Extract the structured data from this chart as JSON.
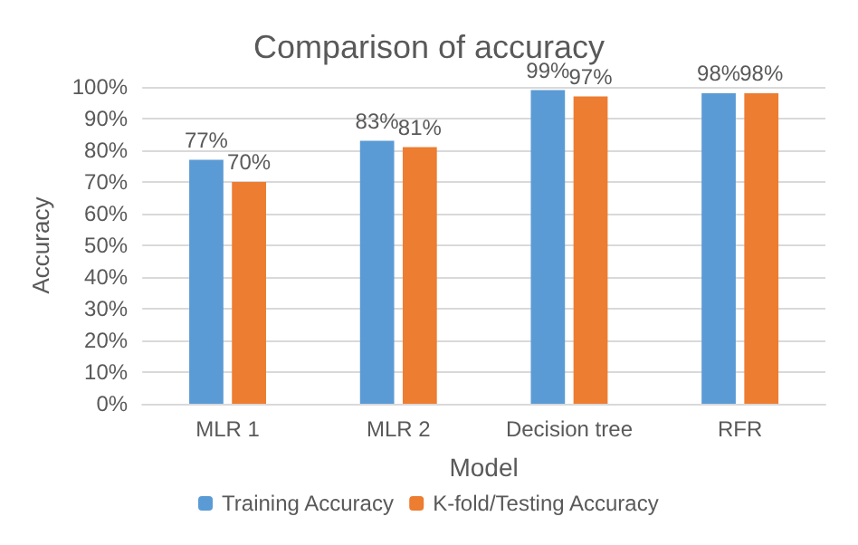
{
  "chart_data": {
    "type": "bar",
    "title": "Comparison of accuracy",
    "xlabel": "Model",
    "ylabel": "Accuracy",
    "categories": [
      "MLR 1",
      "MLR 2",
      "Decision tree",
      "RFR"
    ],
    "series": [
      {
        "name": "Training Accuracy",
        "color": "#5b9bd5",
        "values": [
          77,
          83,
          99,
          98
        ],
        "value_labels": [
          "77%",
          "83%",
          "99%",
          "98%"
        ]
      },
      {
        "name": "K-fold/Testing Accuracy",
        "color": "#ed7d31",
        "values": [
          70,
          81,
          97,
          98
        ],
        "value_labels": [
          "70%",
          "81%",
          "97%",
          "98%"
        ]
      }
    ],
    "ylim": [
      0,
      100
    ],
    "yticks": [
      {
        "value": 0,
        "label": "0%"
      },
      {
        "value": 10,
        "label": "10%"
      },
      {
        "value": 20,
        "label": "20%"
      },
      {
        "value": 30,
        "label": "30%"
      },
      {
        "value": 40,
        "label": "40%"
      },
      {
        "value": 50,
        "label": "50%"
      },
      {
        "value": 60,
        "label": "60%"
      },
      {
        "value": 70,
        "label": "70%"
      },
      {
        "value": 80,
        "label": "80%"
      },
      {
        "value": 90,
        "label": "90%"
      },
      {
        "value": 100,
        "label": "100%"
      }
    ],
    "grid": "y",
    "legend": "bottom"
  }
}
